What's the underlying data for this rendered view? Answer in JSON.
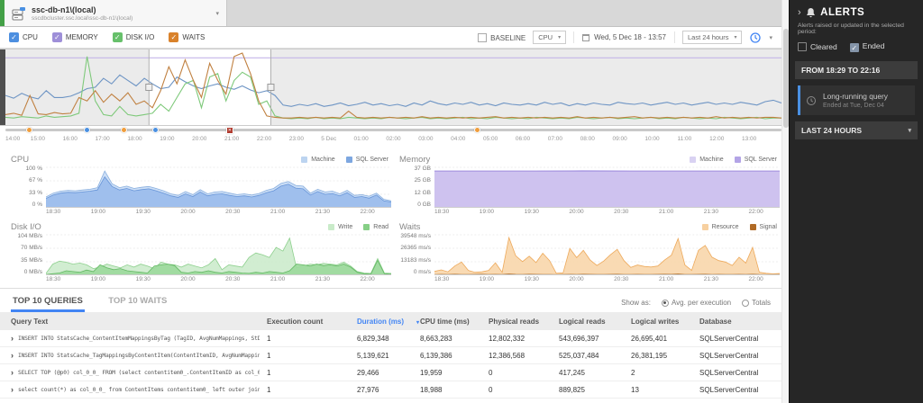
{
  "icons": {
    "check": "✓",
    "caret_down": "▾",
    "chevron_right": "›",
    "alert_marker": "✕"
  },
  "tab_bar": {
    "server": {
      "title": "ssc-db-n1\\(local)",
      "subtitle": "sscdbcluster.ssc.local\\ssc-db-n1\\(local)"
    }
  },
  "metric_toggles": [
    {
      "label": "CPU",
      "color": "#4d8fe0",
      "checked": true
    },
    {
      "label": "MEMORY",
      "color": "#9e8fd8",
      "checked": true
    },
    {
      "label": "DISK I/O",
      "color": "#67c06b",
      "checked": true
    },
    {
      "label": "WAITS",
      "color": "#d9822b",
      "checked": true
    }
  ],
  "toolbar": {
    "baseline_label": "BASELINE",
    "baseline_metric": "CPU",
    "date_label": "Wed, 5 Dec 18 - 13:57",
    "range_label": "Last 24 hours"
  },
  "timeline_markers": [
    {
      "frac": 0.031,
      "type": "orange-dot"
    },
    {
      "frac": 0.106,
      "type": "blue-dot"
    },
    {
      "frac": 0.153,
      "type": "orange-dot"
    },
    {
      "frac": 0.194,
      "type": "blue-dot"
    },
    {
      "frac": 0.289,
      "type": "red-square"
    },
    {
      "frac": 0.609,
      "type": "orange-dot"
    }
  ],
  "chart_data": {
    "timeline": {
      "type": "line",
      "x_labels": [
        "14:00",
        "15:00",
        "16:00",
        "17:00",
        "18:00",
        "19:00",
        "20:00",
        "21:00",
        "22:00",
        "23:00",
        "5 Dec",
        "01:00",
        "02:00",
        "03:00",
        "04:00",
        "05:00",
        "06:00",
        "07:00",
        "08:00",
        "09:00",
        "10:00",
        "11:00",
        "12:00",
        "13:00"
      ],
      "ylim": [
        0,
        100
      ],
      "selection": {
        "from": "18:29",
        "to": "22:16",
        "start_frac": 0.185,
        "end_frac": 0.342
      },
      "series": [
        {
          "name": "Memory",
          "color": "#c4b6e8",
          "values": [
            93,
            93,
            93,
            93
          ]
        },
        {
          "name": "CPU",
          "color": "#6d94c4",
          "values": [
            38,
            34,
            41,
            36,
            33,
            45,
            35,
            35,
            37,
            42,
            48,
            50,
            63,
            55,
            68,
            60,
            52,
            63,
            55,
            48,
            50,
            65,
            58,
            52,
            48,
            52,
            55,
            50,
            47,
            52,
            46,
            42,
            45,
            38,
            24,
            22,
            25,
            23,
            26,
            22,
            24,
            27,
            23,
            25,
            28,
            24,
            26,
            23,
            25,
            22,
            27,
            24,
            30,
            26,
            24,
            27,
            25,
            28,
            24,
            26,
            23,
            27,
            25,
            24,
            26,
            24,
            28,
            25,
            27,
            23,
            26,
            24,
            27,
            25,
            24,
            28,
            26,
            25,
            27,
            24,
            26,
            28,
            25,
            27,
            24,
            26,
            28,
            25,
            27,
            25,
            28,
            26,
            24,
            29,
            31,
            27
          ]
        },
        {
          "name": "Disk I/O",
          "color": "#7ec97a",
          "values": [
            6,
            5,
            7,
            6,
            5,
            8,
            6,
            7,
            8,
            12,
            95,
            30,
            10,
            8,
            22,
            10,
            8,
            10,
            12,
            25,
            15,
            35,
            55,
            60,
            20,
            65,
            70,
            30,
            60,
            72,
            65,
            25,
            30,
            8,
            5,
            4,
            5,
            4,
            6,
            4,
            5,
            4,
            6,
            5,
            4,
            5,
            4,
            6,
            5,
            4,
            5,
            6,
            4,
            5,
            4,
            5,
            6,
            4,
            5,
            4,
            6,
            5,
            4,
            5,
            4,
            6,
            5,
            4,
            5,
            4,
            6,
            5,
            4,
            5,
            6,
            4,
            5,
            4,
            5,
            6,
            4,
            5,
            4,
            6,
            5,
            4,
            5,
            4,
            6,
            5,
            4,
            5,
            6,
            4,
            5,
            5
          ]
        },
        {
          "name": "Waits",
          "color": "#c08040",
          "values": [
            10,
            12,
            9,
            38,
            11,
            10,
            13,
            11,
            12,
            35,
            30,
            45,
            28,
            40,
            30,
            42,
            25,
            30,
            20,
            45,
            80,
            55,
            90,
            60,
            35,
            85,
            60,
            40,
            95,
            100,
            70,
            30,
            8,
            6,
            5,
            5,
            6,
            5,
            6,
            5,
            6,
            5,
            15,
            6,
            5,
            6,
            5,
            6,
            5,
            6,
            5,
            7,
            5,
            6,
            5,
            6,
            5,
            6,
            5,
            6,
            7,
            5,
            6,
            5,
            6,
            5,
            6,
            5,
            6,
            5,
            7,
            5,
            6,
            5,
            6,
            5,
            6,
            7,
            5,
            6,
            5,
            6,
            5,
            6,
            5,
            6,
            5,
            7,
            5,
            6,
            5,
            6,
            5,
            6,
            6,
            5
          ]
        }
      ]
    },
    "detail_charts": [
      {
        "id": "cpu",
        "title": "CPU",
        "type": "area",
        "y_ticks": [
          "100 %",
          "67 %",
          "33 %",
          "0 %"
        ],
        "ymax": 100,
        "x_labels": [
          "18:30",
          "19:00",
          "19:30",
          "20:00",
          "20:30",
          "21:00",
          "21:30",
          "22:00"
        ],
        "legend": [
          {
            "label": "Machine",
            "fill": "#bcd4f0"
          },
          {
            "label": "SQL Server",
            "fill": "#7da7e0"
          }
        ],
        "series": [
          {
            "name": "Machine",
            "fill": "#c9dcf5",
            "line": "#88aede",
            "values": [
              28,
              38,
              43,
              45,
              44,
              46,
              48,
              52,
              95,
              62,
              52,
              56,
              50,
              53,
              55,
              50,
              44,
              36,
              32,
              42,
              34,
              47,
              36,
              41,
              42,
              38,
              34,
              36,
              33,
              37,
              45,
              50,
              63,
              68,
              58,
              56,
              38,
              48,
              41,
              43,
              36,
              45,
              32,
              34,
              30,
              38,
              22,
              18
            ]
          },
          {
            "name": "SQL Server",
            "fill": "#9bbcec",
            "line": "#6795d8",
            "values": [
              24,
              33,
              38,
              40,
              39,
              41,
              43,
              46,
              80,
              55,
              46,
              50,
              44,
              47,
              49,
              44,
              38,
              31,
              27,
              36,
              29,
              41,
              31,
              35,
              36,
              32,
              29,
              31,
              28,
              32,
              39,
              44,
              56,
              61,
              51,
              49,
              33,
              42,
              35,
              37,
              31,
              39,
              27,
              29,
              25,
              33,
              18,
              15
            ]
          }
        ]
      },
      {
        "id": "memory",
        "title": "Memory",
        "type": "area",
        "y_ticks": [
          "37 GB",
          "25 GB",
          "12 GB",
          "0 GB"
        ],
        "ymax": 37,
        "x_labels": [
          "18:30",
          "19:00",
          "19:30",
          "20:00",
          "20:30",
          "21:00",
          "21:30",
          "22:00"
        ],
        "legend": [
          {
            "label": "Machine",
            "fill": "#d9d2f2"
          },
          {
            "label": "SQL Server",
            "fill": "#b3a4e6"
          }
        ],
        "series": [
          {
            "name": "Machine",
            "fill": "#ddd5f4",
            "line": "#b3a4e6",
            "values": [
              35.4,
              35.4,
              35.4,
              35.5,
              35.4,
              35.4,
              35.4,
              35.4
            ]
          },
          {
            "name": "SQL Server",
            "fill": "#ccc0ee",
            "line": "#a695e0",
            "values": [
              34.9,
              34.9,
              34.9,
              35.0,
              34.9,
              34.9,
              34.9,
              34.9
            ]
          }
        ]
      },
      {
        "id": "disk",
        "title": "Disk I/O",
        "type": "area",
        "y_ticks": [
          "104 MB/s",
          "70 MB/s",
          "35 MB/s",
          "0 MB/s"
        ],
        "ymax": 104,
        "x_labels": [
          "18:30",
          "19:00",
          "19:30",
          "20:00",
          "20:30",
          "21:00",
          "21:30",
          "22:00"
        ],
        "legend": [
          {
            "label": "Write",
            "fill": "#c9ebc9"
          },
          {
            "label": "Read",
            "fill": "#86cf86"
          }
        ],
        "series": [
          {
            "name": "Write",
            "fill": "#cdeccd",
            "line": "#8ed08e",
            "values": [
              5,
              30,
              38,
              35,
              30,
              33,
              28,
              18,
              22,
              30,
              25,
              20,
              28,
              22,
              30,
              25,
              18,
              35,
              30,
              28,
              22,
              30,
              25,
              20,
              28,
              45,
              15,
              28,
              25,
              22,
              48,
              60,
              55,
              48,
              75,
              65,
              100,
              20,
              25,
              30,
              28,
              32,
              30,
              28,
              35,
              25,
              10,
              6,
              5,
              45,
              6,
              5
            ]
          },
          {
            "name": "Read",
            "fill": "#9cd99c",
            "line": "#63b863",
            "values": [
              2,
              4,
              6,
              12,
              10,
              8,
              14,
              10,
              28,
              20,
              15,
              18,
              12,
              10,
              8,
              6,
              25,
              28,
              30,
              26,
              8,
              6,
              10,
              8,
              12,
              8,
              6,
              10,
              8,
              6,
              5,
              8,
              6,
              10,
              8,
              6,
              12,
              30,
              28,
              25,
              30,
              26,
              28,
              25,
              30,
              22,
              8,
              4,
              3,
              40,
              4,
              3
            ]
          }
        ]
      },
      {
        "id": "waits",
        "title": "Waits",
        "type": "area",
        "y_ticks": [
          "39548 ms/s",
          "26365 ms/s",
          "13183 ms/s",
          "0 ms/s"
        ],
        "ymax": 39548,
        "x_labels": [
          "18:30",
          "19:00",
          "19:30",
          "20:00",
          "20:30",
          "21:00",
          "21:30",
          "22:00"
        ],
        "legend": [
          {
            "label": "Resource",
            "fill": "#f7d0a0"
          },
          {
            "label": "Signal",
            "fill": "#b06a25"
          }
        ],
        "series": [
          {
            "name": "Resource",
            "fill": "#f8d7ac",
            "line": "#eda95b",
            "values": [
              4000,
              5500,
              3500,
              9500,
              13500,
              5000,
              3000,
              3500,
              5000,
              12800,
              3000,
              38500,
              20000,
              14000,
              19500,
              13000,
              22500,
              15000,
              2000,
              2500,
              27500,
              18000,
              25500,
              15500,
              10000,
              14500,
              21000,
              26500,
              15000,
              8000,
              10500,
              9000,
              8500,
              9500,
              15500,
              20500,
              37500,
              10500,
              5000,
              25500,
              30500,
              18500,
              15000,
              13500,
              10000,
              18500,
              12500,
              28500,
              3000,
              2000,
              1500,
              1800
            ]
          },
          {
            "name": "Signal",
            "fill": "#c17a33",
            "line": "#a8651f",
            "values": [
              600,
              900,
              700,
              1000,
              800,
              700,
              900,
              1000,
              800,
              900,
              700,
              1200,
              900,
              800,
              1000,
              900,
              800,
              700,
              600,
              700,
              900,
              800,
              1000,
              900,
              800,
              700,
              900,
              1000,
              800,
              700,
              900,
              800,
              700,
              900,
              1000,
              900,
              1200,
              800,
              700,
              900,
              1000,
              800,
              900,
              800,
              700,
              900,
              800,
              1000,
              700,
              600,
              600,
              700
            ]
          }
        ]
      }
    ]
  },
  "queries_panel": {
    "tabs": [
      {
        "label": "TOP 10 QUERIES",
        "active": true
      },
      {
        "label": "TOP 10 WAITS",
        "active": false
      }
    ],
    "show_as": {
      "label": "Show as:",
      "options": [
        {
          "label": "Avg. per execution",
          "selected": true
        },
        {
          "label": "Totals",
          "selected": false
        }
      ]
    },
    "columns": [
      "Query Text",
      "Execution count",
      "Duration (ms)",
      "CPU time (ms)",
      "Physical reads",
      "Logical reads",
      "Logical writes",
      "Database"
    ],
    "sort_column": "Duration (ms)",
    "rows": [
      {
        "query": "INSERT INTO StatsCache_ContentItemMappingsByTag (TagID, AvgNumMappings, StDevNumMappings, NumContentI…",
        "execution_count": "1",
        "duration_ms": "6,829,348",
        "cpu_time_ms": "8,663,283",
        "physical_reads": "12,802,332",
        "logical_reads": "543,696,397",
        "logical_writes": "26,695,401",
        "database": "SQLServerCentral"
      },
      {
        "query": "INSERT INTO StatsCache_TagMappingsByContentItem(ContentItemID, AvgNumMappings, StDevNumMappings, NumT…",
        "execution_count": "1",
        "duration_ms": "5,139,621",
        "cpu_time_ms": "6,139,386",
        "physical_reads": "12,386,568",
        "logical_reads": "525,037,484",
        "logical_writes": "26,381,195",
        "database": "SQLServerCentral"
      },
      {
        "query": "SELECT TOP (@p0) col_0_0_ FROM (select contentitem0_.ContentItemID as col_0_0_, ROW_NUMBER() OVER(ORDE…",
        "execution_count": "1",
        "duration_ms": "29,466",
        "cpu_time_ms": "19,959",
        "physical_reads": "0",
        "logical_reads": "417,245",
        "logical_writes": "2",
        "database": "SQLServerCentral"
      },
      {
        "query": "select count(*) as col_0_0_ from ContentItems contentitem0_ left outer join ScheduleEntries schedulees…",
        "execution_count": "1",
        "duration_ms": "27,976",
        "cpu_time_ms": "18,988",
        "physical_reads": "0",
        "logical_reads": "889,825",
        "logical_writes": "13",
        "database": "SQLServerCentral"
      }
    ]
  },
  "alerts_panel": {
    "title": "ALERTS",
    "subtitle": "Alerts raised or updated in the selected period:",
    "filters": [
      {
        "label": "Cleared",
        "checked": false
      },
      {
        "label": "Ended",
        "checked": true
      }
    ],
    "group_header": "FROM 18:29 TO 22:16",
    "alerts": [
      {
        "title": "Long-running query",
        "subtitle": "Ended at Tue, Dec 04",
        "severity_color": "#4a90e2"
      }
    ],
    "footer": "LAST 24 HOURS"
  }
}
